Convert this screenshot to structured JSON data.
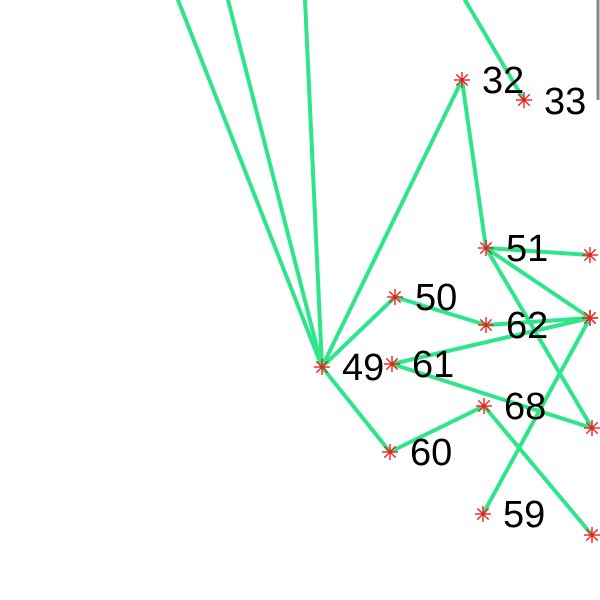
{
  "diagram": {
    "colors": {
      "edge": "#2ee58a",
      "node_marker": "#e8231f",
      "label": "#000000",
      "background": "#ffffff"
    },
    "nodes": [
      {
        "id": "32",
        "label": "32"
      },
      {
        "id": "33",
        "label": "33"
      },
      {
        "id": "51",
        "label": "51"
      },
      {
        "id": "50",
        "label": "50"
      },
      {
        "id": "62",
        "label": "62"
      },
      {
        "id": "49",
        "label": "49"
      },
      {
        "id": "61",
        "label": "61"
      },
      {
        "id": "68",
        "label": "68"
      },
      {
        "id": "60",
        "label": "60"
      },
      {
        "id": "59",
        "label": "59"
      },
      {
        "id": "R1",
        "label": ""
      },
      {
        "id": "R2",
        "label": ""
      },
      {
        "id": "R3",
        "label": ""
      },
      {
        "id": "R4",
        "label": ""
      },
      {
        "id": "R5",
        "label": ""
      }
    ],
    "edges": [
      [
        "32",
        "51"
      ],
      [
        "32",
        "49"
      ],
      [
        "49",
        "50"
      ],
      [
        "49",
        "60"
      ],
      [
        "50",
        "62"
      ],
      [
        "51",
        "R1"
      ],
      [
        "51",
        "R4"
      ],
      [
        "61",
        "R3"
      ],
      [
        "61",
        "R4"
      ],
      [
        "62",
        "R1"
      ],
      [
        "59",
        "R3"
      ],
      [
        "60",
        "68"
      ],
      [
        "68",
        "R5"
      ],
      [
        "R2",
        "51"
      ]
    ],
    "offscreen_edges": [
      {
        "to": "49"
      },
      {
        "to": "49"
      },
      {
        "to": "49"
      },
      {
        "to": "33"
      }
    ]
  }
}
